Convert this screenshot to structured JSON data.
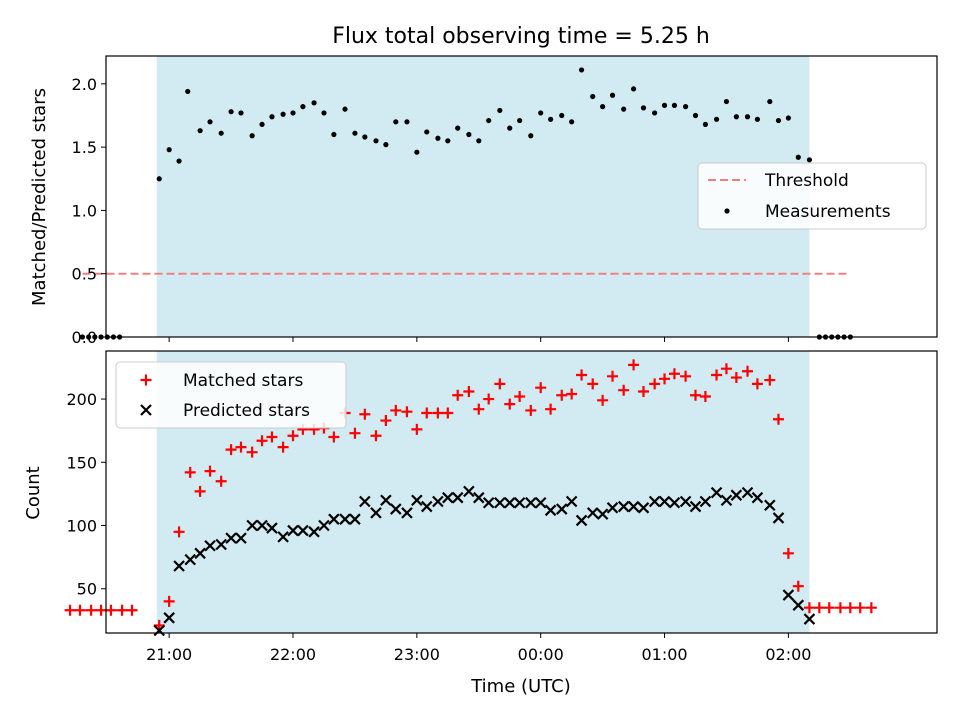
{
  "chart_data": {
    "title": "Flux total observing time = 5.25 h",
    "xlabel": "Time (UTC)",
    "x_unit": "hours since 20:00 UTC",
    "x_range": [
      0.49,
      7.2
    ],
    "x_ticks": [
      {
        "x": 1,
        "label": "21:00"
      },
      {
        "x": 2,
        "label": "22:00"
      },
      {
        "x": 3,
        "label": "23:00"
      },
      {
        "x": 4,
        "label": "00:00"
      },
      {
        "x": 5,
        "label": "01:00"
      },
      {
        "x": 6,
        "label": "02:00"
      }
    ],
    "shaded_region": {
      "x_start": 0.9,
      "x_end": 6.17,
      "color": "#add8e6"
    },
    "panels": [
      {
        "type": "scatter",
        "ylabel": "Matched/Predicted stars",
        "ylim": [
          0,
          2.22
        ],
        "yticks": [
          0.0,
          0.5,
          1.0,
          1.5,
          2.0
        ],
        "ytick_labels": [
          "0.0",
          "0.5",
          "1.0",
          "1.5",
          "2.0"
        ],
        "threshold": {
          "name": "Threshold",
          "value": 0.5,
          "x_start": 0.3,
          "x_end": 6.5,
          "color": "#f08080"
        },
        "legend": {
          "position": "center-right",
          "entries": [
            "Threshold",
            "Measurements"
          ]
        },
        "series": [
          {
            "name": "Measurements",
            "color": "#000000",
            "points": [
              [
                0.3,
                0
              ],
              [
                0.35,
                0
              ],
              [
                0.4,
                0
              ],
              [
                0.45,
                0
              ],
              [
                0.5,
                0
              ],
              [
                0.55,
                0
              ],
              [
                0.6,
                0
              ],
              [
                0.92,
                1.25
              ],
              [
                1.0,
                1.48
              ],
              [
                1.08,
                1.39
              ],
              [
                1.15,
                1.94
              ],
              [
                1.25,
                1.63
              ],
              [
                1.33,
                1.7
              ],
              [
                1.42,
                1.61
              ],
              [
                1.5,
                1.78
              ],
              [
                1.58,
                1.77
              ],
              [
                1.67,
                1.59
              ],
              [
                1.75,
                1.68
              ],
              [
                1.83,
                1.74
              ],
              [
                1.92,
                1.76
              ],
              [
                2.0,
                1.77
              ],
              [
                2.08,
                1.82
              ],
              [
                2.17,
                1.85
              ],
              [
                2.25,
                1.77
              ],
              [
                2.33,
                1.6
              ],
              [
                2.42,
                1.8
              ],
              [
                2.5,
                1.61
              ],
              [
                2.58,
                1.58
              ],
              [
                2.67,
                1.55
              ],
              [
                2.75,
                1.52
              ],
              [
                2.83,
                1.7
              ],
              [
                2.92,
                1.7
              ],
              [
                3.0,
                1.46
              ],
              [
                3.08,
                1.62
              ],
              [
                3.17,
                1.57
              ],
              [
                3.25,
                1.55
              ],
              [
                3.33,
                1.65
              ],
              [
                3.42,
                1.6
              ],
              [
                3.5,
                1.55
              ],
              [
                3.58,
                1.71
              ],
              [
                3.67,
                1.79
              ],
              [
                3.75,
                1.65
              ],
              [
                3.83,
                1.71
              ],
              [
                3.92,
                1.59
              ],
              [
                4.0,
                1.77
              ],
              [
                4.08,
                1.72
              ],
              [
                4.17,
                1.75
              ],
              [
                4.25,
                1.7
              ],
              [
                4.33,
                2.11
              ],
              [
                4.42,
                1.9
              ],
              [
                4.5,
                1.82
              ],
              [
                4.58,
                1.91
              ],
              [
                4.67,
                1.8
              ],
              [
                4.75,
                1.96
              ],
              [
                4.83,
                1.81
              ],
              [
                4.92,
                1.77
              ],
              [
                5.0,
                1.83
              ],
              [
                5.08,
                1.83
              ],
              [
                5.17,
                1.82
              ],
              [
                5.25,
                1.75
              ],
              [
                5.33,
                1.68
              ],
              [
                5.42,
                1.72
              ],
              [
                5.5,
                1.86
              ],
              [
                5.58,
                1.74
              ],
              [
                5.67,
                1.74
              ],
              [
                5.75,
                1.72
              ],
              [
                5.85,
                1.86
              ],
              [
                5.92,
                1.71
              ],
              [
                6.0,
                1.73
              ],
              [
                6.08,
                1.42
              ],
              [
                6.17,
                1.4
              ],
              [
                6.25,
                0
              ],
              [
                6.3,
                0
              ],
              [
                6.35,
                0
              ],
              [
                6.4,
                0
              ],
              [
                6.45,
                0
              ],
              [
                6.5,
                0
              ]
            ]
          }
        ]
      },
      {
        "type": "scatter",
        "ylabel": "Count",
        "ylim": [
          15,
          238
        ],
        "yticks": [
          50,
          100,
          150,
          200
        ],
        "ytick_labels": [
          "50",
          "100",
          "150",
          "200"
        ],
        "legend": {
          "position": "top-left",
          "entries": [
            "Matched stars",
            "Predicted stars"
          ]
        },
        "series": [
          {
            "name": "Matched stars",
            "color": "#ff0000",
            "marker": "plus",
            "points": [
              [
                0.2,
                33
              ],
              [
                0.28,
                33
              ],
              [
                0.37,
                33
              ],
              [
                0.45,
                33
              ],
              [
                0.53,
                33
              ],
              [
                0.62,
                33
              ],
              [
                0.7,
                33
              ],
              [
                0.92,
                21
              ],
              [
                1.0,
                40
              ],
              [
                1.08,
                95
              ],
              [
                1.17,
                142
              ],
              [
                1.25,
                127
              ],
              [
                1.33,
                143
              ],
              [
                1.42,
                135
              ],
              [
                1.5,
                160
              ],
              [
                1.58,
                162
              ],
              [
                1.67,
                158
              ],
              [
                1.75,
                167
              ],
              [
                1.83,
                170
              ],
              [
                1.92,
                162
              ],
              [
                2.0,
                171
              ],
              [
                2.08,
                176
              ],
              [
                2.17,
                176
              ],
              [
                2.25,
                177
              ],
              [
                2.33,
                170
              ],
              [
                2.42,
                189
              ],
              [
                2.5,
                173
              ],
              [
                2.58,
                188
              ],
              [
                2.67,
                171
              ],
              [
                2.75,
                183
              ],
              [
                2.83,
                191
              ],
              [
                2.92,
                190
              ],
              [
                3.0,
                176
              ],
              [
                3.08,
                189
              ],
              [
                3.17,
                189
              ],
              [
                3.25,
                189
              ],
              [
                3.33,
                203
              ],
              [
                3.42,
                206
              ],
              [
                3.5,
                192
              ],
              [
                3.58,
                200
              ],
              [
                3.67,
                212
              ],
              [
                3.75,
                196
              ],
              [
                3.83,
                202
              ],
              [
                3.92,
                191
              ],
              [
                4.0,
                209
              ],
              [
                4.08,
                192
              ],
              [
                4.17,
                203
              ],
              [
                4.25,
                204
              ],
              [
                4.33,
                219
              ],
              [
                4.42,
                212
              ],
              [
                4.5,
                199
              ],
              [
                4.58,
                218
              ],
              [
                4.67,
                207
              ],
              [
                4.75,
                227
              ],
              [
                4.83,
                206
              ],
              [
                4.92,
                212
              ],
              [
                5.0,
                216
              ],
              [
                5.08,
                220
              ],
              [
                5.17,
                218
              ],
              [
                5.25,
                203
              ],
              [
                5.33,
                202
              ],
              [
                5.42,
                219
              ],
              [
                5.5,
                224
              ],
              [
                5.58,
                217
              ],
              [
                5.67,
                222
              ],
              [
                5.75,
                212
              ],
              [
                5.85,
                215
              ],
              [
                5.92,
                184
              ],
              [
                6.0,
                78
              ],
              [
                6.08,
                52
              ],
              [
                6.17,
                35
              ],
              [
                6.25,
                35
              ],
              [
                6.33,
                35
              ],
              [
                6.42,
                35
              ],
              [
                6.5,
                35
              ],
              [
                6.58,
                35
              ],
              [
                6.67,
                35
              ]
            ]
          },
          {
            "name": "Predicted stars",
            "color": "#000000",
            "marker": "x",
            "points": [
              [
                0.92,
                17
              ],
              [
                1.0,
                27
              ],
              [
                1.08,
                68
              ],
              [
                1.17,
                73
              ],
              [
                1.25,
                78
              ],
              [
                1.33,
                84
              ],
              [
                1.42,
                85
              ],
              [
                1.5,
                90
              ],
              [
                1.58,
                90
              ],
              [
                1.67,
                100
              ],
              [
                1.75,
                100
              ],
              [
                1.83,
                98
              ],
              [
                1.92,
                91
              ],
              [
                2.0,
                96
              ],
              [
                2.08,
                96
              ],
              [
                2.17,
                95
              ],
              [
                2.25,
                100
              ],
              [
                2.33,
                105
              ],
              [
                2.42,
                105
              ],
              [
                2.5,
                105
              ],
              [
                2.58,
                119
              ],
              [
                2.67,
                110
              ],
              [
                2.75,
                120
              ],
              [
                2.83,
                113
              ],
              [
                2.92,
                110
              ],
              [
                3.0,
                120
              ],
              [
                3.08,
                115
              ],
              [
                3.17,
                119
              ],
              [
                3.25,
                122
              ],
              [
                3.33,
                122
              ],
              [
                3.42,
                127
              ],
              [
                3.5,
                122
              ],
              [
                3.58,
                118
              ],
              [
                3.67,
                118
              ],
              [
                3.75,
                118
              ],
              [
                3.83,
                118
              ],
              [
                3.92,
                118
              ],
              [
                4.0,
                118
              ],
              [
                4.08,
                112
              ],
              [
                4.17,
                113
              ],
              [
                4.25,
                119
              ],
              [
                4.33,
                104
              ],
              [
                4.42,
                110
              ],
              [
                4.5,
                109
              ],
              [
                4.58,
                114
              ],
              [
                4.67,
                115
              ],
              [
                4.75,
                115
              ],
              [
                4.83,
                114
              ],
              [
                4.92,
                119
              ],
              [
                5.0,
                119
              ],
              [
                5.08,
                118
              ],
              [
                5.17,
                119
              ],
              [
                5.25,
                115
              ],
              [
                5.33,
                119
              ],
              [
                5.42,
                126
              ],
              [
                5.5,
                120
              ],
              [
                5.58,
                124
              ],
              [
                5.67,
                126
              ],
              [
                5.75,
                122
              ],
              [
                5.85,
                116
              ],
              [
                5.92,
                106
              ],
              [
                6.0,
                45
              ],
              [
                6.08,
                37
              ],
              [
                6.17,
                26
              ]
            ]
          }
        ]
      }
    ]
  }
}
